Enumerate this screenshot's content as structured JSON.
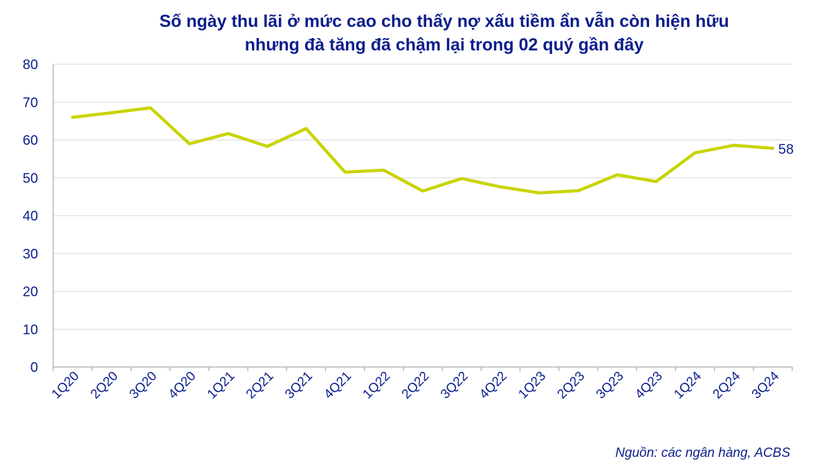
{
  "title_lines": [
    "Số ngày thu lãi ở mức cao cho thấy nợ xấu tiềm ẩn vẫn còn hiện hữu",
    "nhưng đà tăng đã chậm lại trong 02 quý gần đây"
  ],
  "source": "Nguồn: các ngân hàng, ACBS",
  "colors": {
    "line": "#c8d400",
    "text": "#0b1e8c",
    "grid": "#d9d9d9",
    "axis": "#a6a6a6"
  },
  "chart_data": {
    "type": "line",
    "categories": [
      "1Q20",
      "2Q20",
      "3Q20",
      "4Q20",
      "1Q21",
      "2Q21",
      "3Q21",
      "4Q21",
      "1Q22",
      "2Q22",
      "3Q22",
      "4Q22",
      "1Q23",
      "2Q23",
      "3Q23",
      "4Q23",
      "1Q24",
      "2Q24",
      "3Q24"
    ],
    "series": [
      {
        "values": [
          66,
          67.2,
          68.5,
          59,
          61.7,
          58.3,
          63,
          51.5,
          52,
          46.5,
          49.8,
          47.6,
          46,
          46.6,
          50.8,
          49,
          56.6,
          58.6,
          57.8
        ]
      }
    ],
    "ylim": [
      0,
      80
    ],
    "yticks": [
      0,
      10,
      20,
      30,
      40,
      50,
      60,
      70,
      80
    ],
    "grid": true,
    "end_label": "58",
    "xlabel": "",
    "ylabel": ""
  }
}
